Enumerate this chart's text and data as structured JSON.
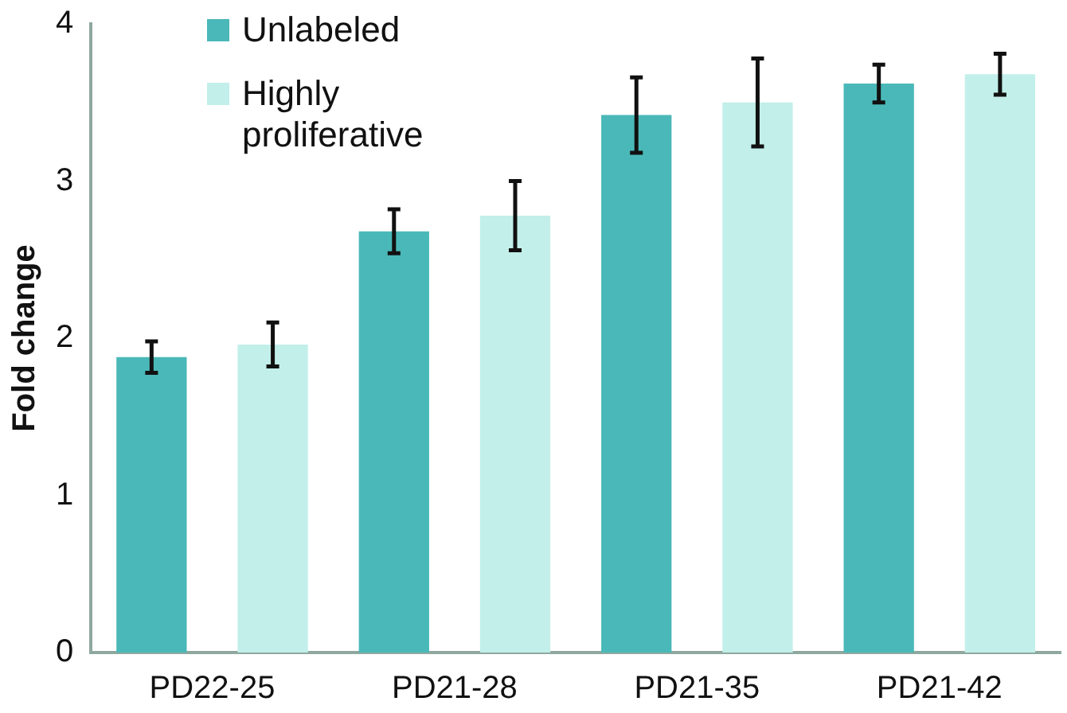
{
  "chart_data": {
    "type": "bar",
    "ylabel": "Fold change",
    "categories": [
      "PD22-25",
      "PD21-28",
      "PD21-35",
      "PD21-42"
    ],
    "series": [
      {
        "name": "Unlabeled",
        "color": "#4ab8b8",
        "values": [
          1.88,
          2.68,
          3.42,
          3.62
        ],
        "errors": [
          0.1,
          0.14,
          0.24,
          0.12
        ]
      },
      {
        "name": "Highly proliferative",
        "color": "#c2efea",
        "values": [
          1.96,
          2.78,
          3.5,
          3.68
        ],
        "errors": [
          0.14,
          0.22,
          0.28,
          0.13
        ]
      }
    ],
    "ylim": [
      0,
      4
    ],
    "yticks": [
      0,
      1,
      2,
      3,
      4
    ],
    "grid": false,
    "legend": "top left"
  }
}
